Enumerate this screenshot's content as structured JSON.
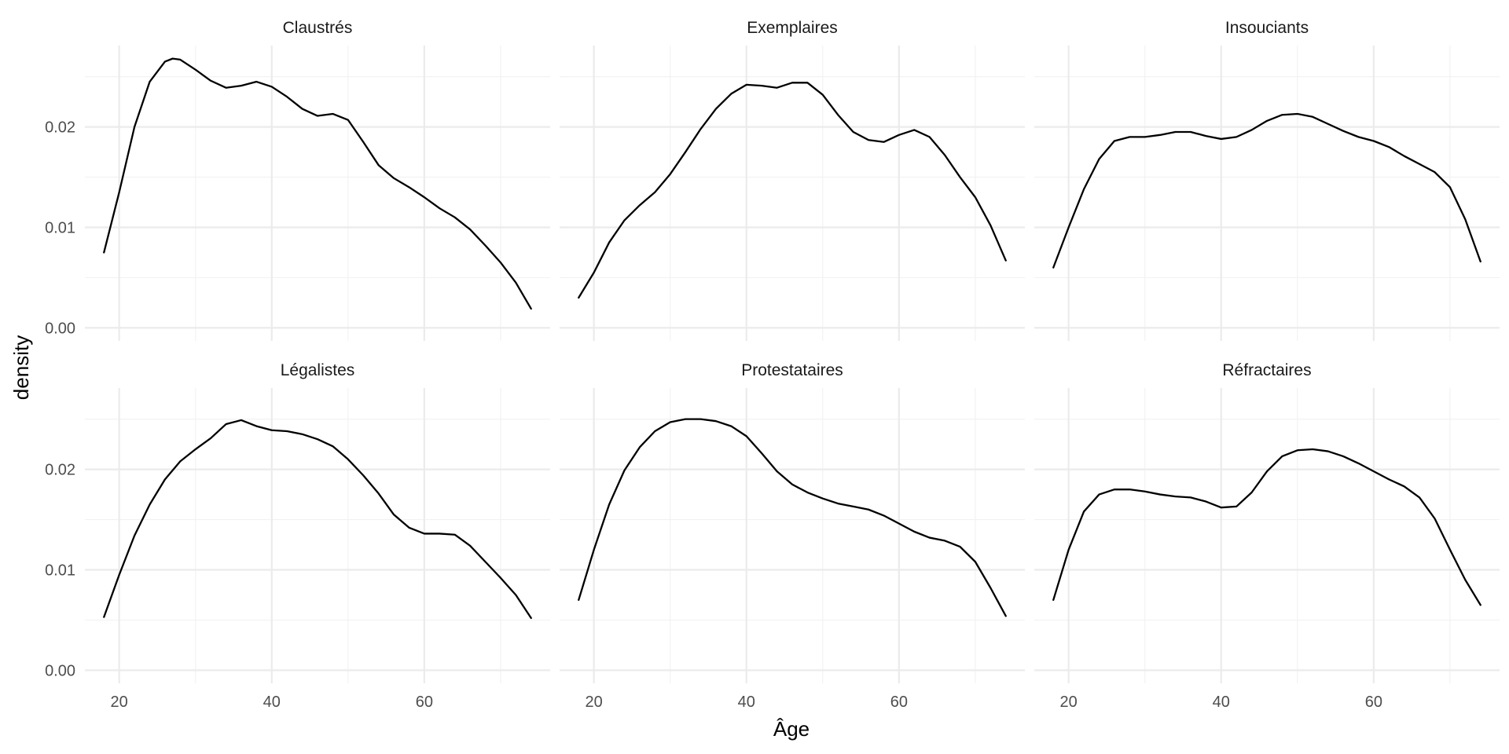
{
  "chart_data": {
    "type": "line",
    "xlabel": "Âge",
    "ylabel": "density",
    "xlim": [
      15.5,
      76.5
    ],
    "ylim": [
      -0.0013,
      0.0281
    ],
    "x_ticks": [
      20,
      40,
      60
    ],
    "x_tick_labels": [
      "20",
      "40",
      "60"
    ],
    "x_minor": [
      30,
      50,
      70
    ],
    "y_ticks": [
      0.0,
      0.01,
      0.02
    ],
    "y_tick_labels": [
      "0.00",
      "0.01",
      "0.02"
    ],
    "y_minor": [
      0.005,
      0.015,
      0.025
    ],
    "grid": true,
    "layout": "2 rows x 3 columns facets",
    "panels": [
      {
        "name": "Claustrés",
        "points": [
          [
            18,
            0.0075
          ],
          [
            20,
            0.0135
          ],
          [
            22,
            0.02
          ],
          [
            24,
            0.0245
          ],
          [
            26,
            0.0265
          ],
          [
            27,
            0.0268
          ],
          [
            28,
            0.0267
          ],
          [
            30,
            0.0257
          ],
          [
            32,
            0.0246
          ],
          [
            34,
            0.0239
          ],
          [
            36,
            0.0241
          ],
          [
            38,
            0.0245
          ],
          [
            40,
            0.024
          ],
          [
            42,
            0.023
          ],
          [
            44,
            0.0218
          ],
          [
            46,
            0.0211
          ],
          [
            48,
            0.0213
          ],
          [
            50,
            0.0207
          ],
          [
            52,
            0.0185
          ],
          [
            54,
            0.0162
          ],
          [
            56,
            0.0149
          ],
          [
            58,
            0.014
          ],
          [
            60,
            0.013
          ],
          [
            62,
            0.0119
          ],
          [
            64,
            0.011
          ],
          [
            66,
            0.0098
          ],
          [
            68,
            0.0082
          ],
          [
            70,
            0.0065
          ],
          [
            72,
            0.0045
          ],
          [
            74,
            0.0019
          ]
        ]
      },
      {
        "name": "Exemplaires",
        "points": [
          [
            18,
            0.003
          ],
          [
            20,
            0.0055
          ],
          [
            22,
            0.0085
          ],
          [
            24,
            0.0107
          ],
          [
            26,
            0.0122
          ],
          [
            28,
            0.0135
          ],
          [
            30,
            0.0153
          ],
          [
            32,
            0.0175
          ],
          [
            34,
            0.0198
          ],
          [
            36,
            0.0218
          ],
          [
            38,
            0.0233
          ],
          [
            40,
            0.0242
          ],
          [
            42,
            0.0241
          ],
          [
            44,
            0.0239
          ],
          [
            46,
            0.0244
          ],
          [
            48,
            0.0244
          ],
          [
            50,
            0.0232
          ],
          [
            52,
            0.0212
          ],
          [
            54,
            0.0195
          ],
          [
            56,
            0.0187
          ],
          [
            58,
            0.0185
          ],
          [
            60,
            0.0192
          ],
          [
            62,
            0.0197
          ],
          [
            64,
            0.019
          ],
          [
            66,
            0.0172
          ],
          [
            68,
            0.015
          ],
          [
            70,
            0.013
          ],
          [
            72,
            0.0102
          ],
          [
            74,
            0.0067
          ]
        ]
      },
      {
        "name": "Insouciants",
        "points": [
          [
            18,
            0.006
          ],
          [
            20,
            0.01
          ],
          [
            22,
            0.0138
          ],
          [
            24,
            0.0168
          ],
          [
            26,
            0.0186
          ],
          [
            28,
            0.019
          ],
          [
            30,
            0.019
          ],
          [
            32,
            0.0192
          ],
          [
            34,
            0.0195
          ],
          [
            36,
            0.0195
          ],
          [
            38,
            0.0191
          ],
          [
            40,
            0.0188
          ],
          [
            42,
            0.019
          ],
          [
            44,
            0.0197
          ],
          [
            46,
            0.0206
          ],
          [
            48,
            0.0212
          ],
          [
            50,
            0.0213
          ],
          [
            52,
            0.021
          ],
          [
            54,
            0.0203
          ],
          [
            56,
            0.0196
          ],
          [
            58,
            0.019
          ],
          [
            60,
            0.0186
          ],
          [
            62,
            0.018
          ],
          [
            64,
            0.0171
          ],
          [
            66,
            0.0163
          ],
          [
            68,
            0.0155
          ],
          [
            70,
            0.014
          ],
          [
            72,
            0.0108
          ],
          [
            74,
            0.0066
          ]
        ]
      },
      {
        "name": "Légalistes",
        "points": [
          [
            18,
            0.0053
          ],
          [
            20,
            0.0095
          ],
          [
            22,
            0.0134
          ],
          [
            24,
            0.0165
          ],
          [
            26,
            0.019
          ],
          [
            28,
            0.0208
          ],
          [
            30,
            0.022
          ],
          [
            32,
            0.0231
          ],
          [
            34,
            0.0245
          ],
          [
            36,
            0.0249
          ],
          [
            38,
            0.0243
          ],
          [
            40,
            0.0239
          ],
          [
            42,
            0.0238
          ],
          [
            44,
            0.0235
          ],
          [
            46,
            0.023
          ],
          [
            48,
            0.0223
          ],
          [
            50,
            0.021
          ],
          [
            52,
            0.0194
          ],
          [
            54,
            0.0176
          ],
          [
            56,
            0.0155
          ],
          [
            58,
            0.0142
          ],
          [
            60,
            0.0136
          ],
          [
            62,
            0.0136
          ],
          [
            64,
            0.0135
          ],
          [
            66,
            0.0124
          ],
          [
            68,
            0.0108
          ],
          [
            70,
            0.0092
          ],
          [
            72,
            0.0075
          ],
          [
            74,
            0.0052
          ]
        ]
      },
      {
        "name": "Protestataires",
        "points": [
          [
            18,
            0.007
          ],
          [
            20,
            0.012
          ],
          [
            22,
            0.0165
          ],
          [
            24,
            0.0199
          ],
          [
            26,
            0.0222
          ],
          [
            28,
            0.0238
          ],
          [
            30,
            0.0247
          ],
          [
            32,
            0.025
          ],
          [
            34,
            0.025
          ],
          [
            36,
            0.0248
          ],
          [
            38,
            0.0243
          ],
          [
            40,
            0.0233
          ],
          [
            42,
            0.0216
          ],
          [
            44,
            0.0198
          ],
          [
            46,
            0.0185
          ],
          [
            48,
            0.0177
          ],
          [
            50,
            0.0171
          ],
          [
            52,
            0.0166
          ],
          [
            54,
            0.0163
          ],
          [
            56,
            0.016
          ],
          [
            58,
            0.0154
          ],
          [
            60,
            0.0146
          ],
          [
            62,
            0.0138
          ],
          [
            64,
            0.0132
          ],
          [
            66,
            0.0129
          ],
          [
            68,
            0.0123
          ],
          [
            70,
            0.0108
          ],
          [
            72,
            0.0082
          ],
          [
            74,
            0.0054
          ]
        ]
      },
      {
        "name": "Réfractaires",
        "points": [
          [
            18,
            0.007
          ],
          [
            20,
            0.012
          ],
          [
            22,
            0.0158
          ],
          [
            24,
            0.0175
          ],
          [
            26,
            0.018
          ],
          [
            28,
            0.018
          ],
          [
            30,
            0.0178
          ],
          [
            32,
            0.0175
          ],
          [
            34,
            0.0173
          ],
          [
            36,
            0.0172
          ],
          [
            38,
            0.0168
          ],
          [
            40,
            0.0162
          ],
          [
            42,
            0.0163
          ],
          [
            44,
            0.0177
          ],
          [
            46,
            0.0198
          ],
          [
            48,
            0.0213
          ],
          [
            50,
            0.0219
          ],
          [
            52,
            0.022
          ],
          [
            54,
            0.0218
          ],
          [
            56,
            0.0213
          ],
          [
            58,
            0.0206
          ],
          [
            60,
            0.0198
          ],
          [
            62,
            0.019
          ],
          [
            64,
            0.0183
          ],
          [
            66,
            0.0172
          ],
          [
            68,
            0.0151
          ],
          [
            70,
            0.012
          ],
          [
            72,
            0.009
          ],
          [
            74,
            0.0065
          ]
        ]
      }
    ]
  }
}
